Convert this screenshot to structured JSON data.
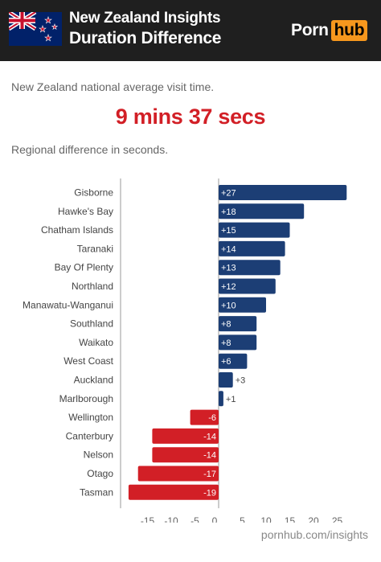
{
  "header": {
    "title_line1": "New Zealand Insights",
    "title_line2": "Duration Difference",
    "logo_part1": "Porn",
    "logo_part2": "hub"
  },
  "intro_text": "New Zealand national average visit time.",
  "average_time": "9 mins 37 secs",
  "subtitle": "Regional difference in seconds.",
  "footer": "pornhub.com/insights",
  "colors": {
    "positive": "#1c3e75",
    "negative": "#d21f26",
    "header_bg": "#1f1f1f",
    "accent": "#f7971d"
  },
  "chart_data": {
    "type": "bar",
    "orientation": "horizontal",
    "categories": [
      "Gisborne",
      "Hawke's Bay",
      "Chatham Islands",
      "Taranaki",
      "Bay Of Plenty",
      "Northland",
      "Manawatu-Wanganui",
      "Southland",
      "Waikato",
      "West Coast",
      "Auckland",
      "Marlborough",
      "Wellington",
      "Canterbury",
      "Nelson",
      "Otago",
      "Tasman"
    ],
    "values": [
      27,
      18,
      15,
      14,
      13,
      12,
      10,
      8,
      8,
      6,
      3,
      1,
      -6,
      -14,
      -14,
      -17,
      -19
    ],
    "value_labels": [
      "+27",
      "+18",
      "+15",
      "+14",
      "+13",
      "+12",
      "+10",
      "+8",
      "+8",
      "+6",
      "+3",
      "+1",
      "-6",
      "-14",
      "-14",
      "-17",
      "-19"
    ],
    "xlim": [
      -20,
      28
    ],
    "xticks": [
      -15,
      -10,
      -5,
      0,
      5,
      10,
      15,
      20,
      25
    ],
    "xtick_labels": [
      "-15",
      "-10",
      "-5",
      "0",
      "5",
      "10",
      "15",
      "20",
      "25"
    ],
    "grid": "vertical lines at axis start and zero"
  }
}
